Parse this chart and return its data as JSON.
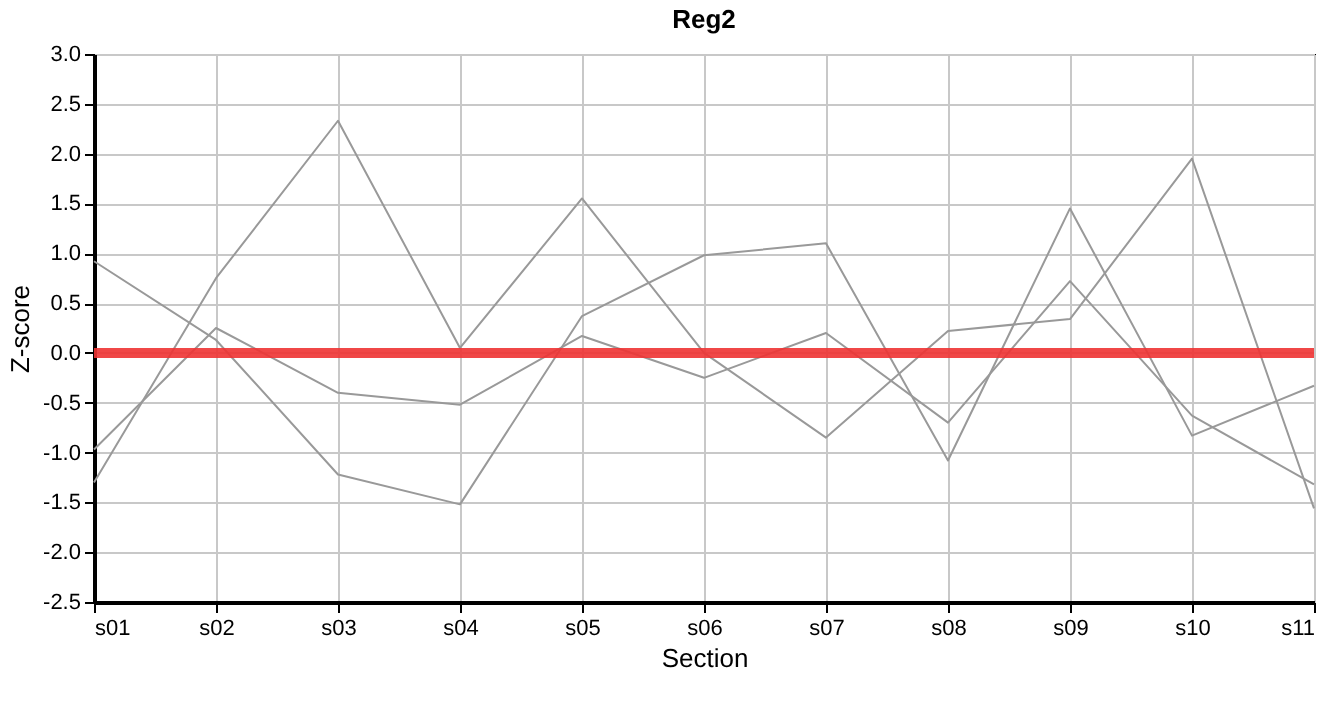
{
  "chart_data": {
    "type": "line",
    "title": "Reg2",
    "xlabel": "Section",
    "ylabel": "Z-score",
    "categories": [
      "s01",
      "s02",
      "s03",
      "s04",
      "s05",
      "s06",
      "s07",
      "s08",
      "s09",
      "s10",
      "s11"
    ],
    "series": [
      {
        "color": "#999999",
        "values": [
          -1.3,
          0.75,
          2.33,
          0.05,
          1.55,
          0,
          -0.85,
          0.22,
          0.34,
          1.95,
          -1.56
        ]
      },
      {
        "color": "#999999",
        "values": [
          0.92,
          0.13,
          -1.22,
          -1.52,
          0.37,
          0.98,
          1.1,
          -1.08,
          1.45,
          -0.83,
          -0.33
        ]
      },
      {
        "color": "#999999",
        "values": [
          -0.97,
          0.25,
          -0.4,
          -0.52,
          0.17,
          -0.25,
          0.2,
          -0.7,
          0.72,
          -0.63,
          -1.32
        ]
      }
    ],
    "ylim": [
      -2.5,
      3.0
    ],
    "yticks": [
      {
        "value": -2.5,
        "label": "-2.5"
      },
      {
        "value": -2,
        "label": "-2.0"
      },
      {
        "value": -1.5,
        "label": "-1.5"
      },
      {
        "value": -1,
        "label": "-1.0"
      },
      {
        "value": -0.5,
        "label": "-0.5"
      },
      {
        "value": 0,
        "label": "0.0"
      },
      {
        "value": 0.5,
        "label": "0.5"
      },
      {
        "value": 1,
        "label": "1.0"
      },
      {
        "value": 1.5,
        "label": "1.5"
      },
      {
        "value": 2,
        "label": "2.0"
      },
      {
        "value": 2.5,
        "label": "2.5"
      },
      {
        "value": 3,
        "label": "3.0"
      }
    ],
    "ref_lines": [
      {
        "axis": "y",
        "value": 0,
        "color": "#ee3333"
      }
    ],
    "grid": true,
    "legend": false,
    "marker": "none",
    "line_style": "solid"
  }
}
